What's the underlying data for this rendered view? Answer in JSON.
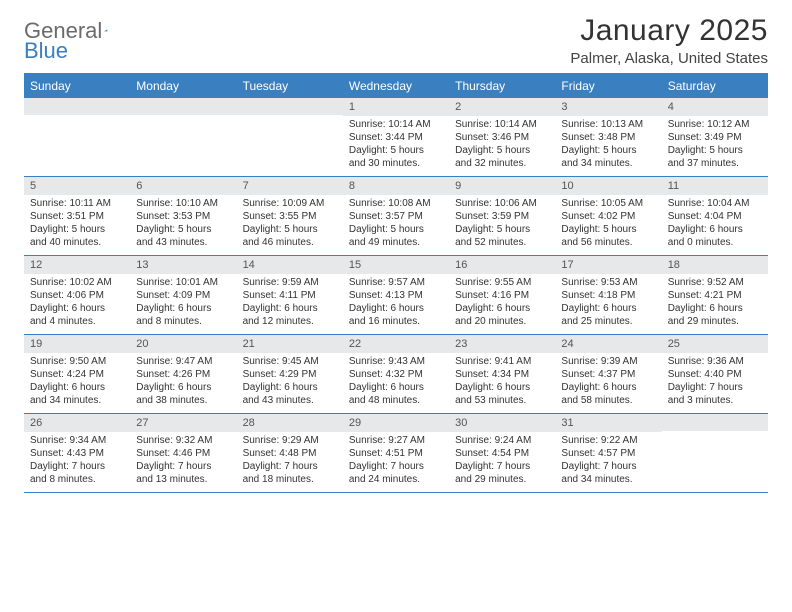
{
  "brand": {
    "part1": "General",
    "part2": "Blue"
  },
  "title": "January 2025",
  "subtitle": "Palmer, Alaska, United States",
  "colors": {
    "brand_blue": "#3a7fbf",
    "header_bg": "#3a7fbf",
    "header_text": "#ffffff",
    "row_border": "#3a7fbf",
    "daynum_bg": "#e7e8ea",
    "text": "#333333",
    "background": "#ffffff"
  },
  "font": {
    "family": "Arial",
    "cell_size_pt": 10,
    "title_size_pt": 30,
    "subtitle_size_pt": 15,
    "dayhead_size_pt": 12
  },
  "days_of_week": [
    "Sunday",
    "Monday",
    "Tuesday",
    "Wednesday",
    "Thursday",
    "Friday",
    "Saturday"
  ],
  "weeks": [
    [
      {
        "day": null
      },
      {
        "day": null
      },
      {
        "day": null
      },
      {
        "day": 1,
        "sunrise": "10:14 AM",
        "sunset": "3:44 PM",
        "daylight_a": "Daylight: 5 hours",
        "daylight_b": "and 30 minutes."
      },
      {
        "day": 2,
        "sunrise": "10:14 AM",
        "sunset": "3:46 PM",
        "daylight_a": "Daylight: 5 hours",
        "daylight_b": "and 32 minutes."
      },
      {
        "day": 3,
        "sunrise": "10:13 AM",
        "sunset": "3:48 PM",
        "daylight_a": "Daylight: 5 hours",
        "daylight_b": "and 34 minutes."
      },
      {
        "day": 4,
        "sunrise": "10:12 AM",
        "sunset": "3:49 PM",
        "daylight_a": "Daylight: 5 hours",
        "daylight_b": "and 37 minutes."
      }
    ],
    [
      {
        "day": 5,
        "sunrise": "10:11 AM",
        "sunset": "3:51 PM",
        "daylight_a": "Daylight: 5 hours",
        "daylight_b": "and 40 minutes."
      },
      {
        "day": 6,
        "sunrise": "10:10 AM",
        "sunset": "3:53 PM",
        "daylight_a": "Daylight: 5 hours",
        "daylight_b": "and 43 minutes."
      },
      {
        "day": 7,
        "sunrise": "10:09 AM",
        "sunset": "3:55 PM",
        "daylight_a": "Daylight: 5 hours",
        "daylight_b": "and 46 minutes."
      },
      {
        "day": 8,
        "sunrise": "10:08 AM",
        "sunset": "3:57 PM",
        "daylight_a": "Daylight: 5 hours",
        "daylight_b": "and 49 minutes."
      },
      {
        "day": 9,
        "sunrise": "10:06 AM",
        "sunset": "3:59 PM",
        "daylight_a": "Daylight: 5 hours",
        "daylight_b": "and 52 minutes."
      },
      {
        "day": 10,
        "sunrise": "10:05 AM",
        "sunset": "4:02 PM",
        "daylight_a": "Daylight: 5 hours",
        "daylight_b": "and 56 minutes."
      },
      {
        "day": 11,
        "sunrise": "10:04 AM",
        "sunset": "4:04 PM",
        "daylight_a": "Daylight: 6 hours",
        "daylight_b": "and 0 minutes."
      }
    ],
    [
      {
        "day": 12,
        "sunrise": "10:02 AM",
        "sunset": "4:06 PM",
        "daylight_a": "Daylight: 6 hours",
        "daylight_b": "and 4 minutes."
      },
      {
        "day": 13,
        "sunrise": "10:01 AM",
        "sunset": "4:09 PM",
        "daylight_a": "Daylight: 6 hours",
        "daylight_b": "and 8 minutes."
      },
      {
        "day": 14,
        "sunrise": "9:59 AM",
        "sunset": "4:11 PM",
        "daylight_a": "Daylight: 6 hours",
        "daylight_b": "and 12 minutes."
      },
      {
        "day": 15,
        "sunrise": "9:57 AM",
        "sunset": "4:13 PM",
        "daylight_a": "Daylight: 6 hours",
        "daylight_b": "and 16 minutes."
      },
      {
        "day": 16,
        "sunrise": "9:55 AM",
        "sunset": "4:16 PM",
        "daylight_a": "Daylight: 6 hours",
        "daylight_b": "and 20 minutes."
      },
      {
        "day": 17,
        "sunrise": "9:53 AM",
        "sunset": "4:18 PM",
        "daylight_a": "Daylight: 6 hours",
        "daylight_b": "and 25 minutes."
      },
      {
        "day": 18,
        "sunrise": "9:52 AM",
        "sunset": "4:21 PM",
        "daylight_a": "Daylight: 6 hours",
        "daylight_b": "and 29 minutes."
      }
    ],
    [
      {
        "day": 19,
        "sunrise": "9:50 AM",
        "sunset": "4:24 PM",
        "daylight_a": "Daylight: 6 hours",
        "daylight_b": "and 34 minutes."
      },
      {
        "day": 20,
        "sunrise": "9:47 AM",
        "sunset": "4:26 PM",
        "daylight_a": "Daylight: 6 hours",
        "daylight_b": "and 38 minutes."
      },
      {
        "day": 21,
        "sunrise": "9:45 AM",
        "sunset": "4:29 PM",
        "daylight_a": "Daylight: 6 hours",
        "daylight_b": "and 43 minutes."
      },
      {
        "day": 22,
        "sunrise": "9:43 AM",
        "sunset": "4:32 PM",
        "daylight_a": "Daylight: 6 hours",
        "daylight_b": "and 48 minutes."
      },
      {
        "day": 23,
        "sunrise": "9:41 AM",
        "sunset": "4:34 PM",
        "daylight_a": "Daylight: 6 hours",
        "daylight_b": "and 53 minutes."
      },
      {
        "day": 24,
        "sunrise": "9:39 AM",
        "sunset": "4:37 PM",
        "daylight_a": "Daylight: 6 hours",
        "daylight_b": "and 58 minutes."
      },
      {
        "day": 25,
        "sunrise": "9:36 AM",
        "sunset": "4:40 PM",
        "daylight_a": "Daylight: 7 hours",
        "daylight_b": "and 3 minutes."
      }
    ],
    [
      {
        "day": 26,
        "sunrise": "9:34 AM",
        "sunset": "4:43 PM",
        "daylight_a": "Daylight: 7 hours",
        "daylight_b": "and 8 minutes."
      },
      {
        "day": 27,
        "sunrise": "9:32 AM",
        "sunset": "4:46 PM",
        "daylight_a": "Daylight: 7 hours",
        "daylight_b": "and 13 minutes."
      },
      {
        "day": 28,
        "sunrise": "9:29 AM",
        "sunset": "4:48 PM",
        "daylight_a": "Daylight: 7 hours",
        "daylight_b": "and 18 minutes."
      },
      {
        "day": 29,
        "sunrise": "9:27 AM",
        "sunset": "4:51 PM",
        "daylight_a": "Daylight: 7 hours",
        "daylight_b": "and 24 minutes."
      },
      {
        "day": 30,
        "sunrise": "9:24 AM",
        "sunset": "4:54 PM",
        "daylight_a": "Daylight: 7 hours",
        "daylight_b": "and 29 minutes."
      },
      {
        "day": 31,
        "sunrise": "9:22 AM",
        "sunset": "4:57 PM",
        "daylight_a": "Daylight: 7 hours",
        "daylight_b": "and 34 minutes."
      },
      {
        "day": null
      }
    ]
  ],
  "labels": {
    "sunrise_prefix": "Sunrise: ",
    "sunset_prefix": "Sunset: "
  }
}
